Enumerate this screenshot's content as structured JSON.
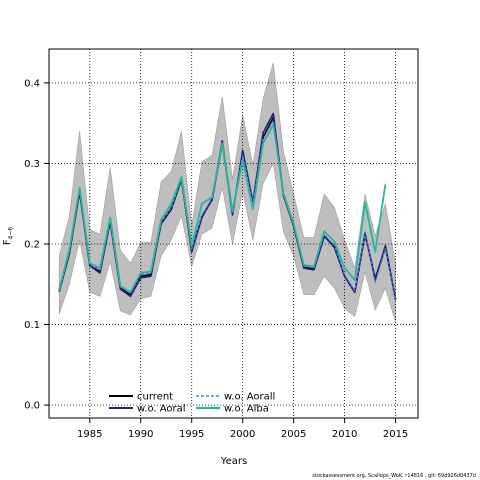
{
  "chart_data": {
    "type": "line",
    "xlabel": "Years",
    "ylabel_main": "F",
    "ylabel_sub": "4−6",
    "xlim": [
      1981,
      2017.2
    ],
    "ylim": [
      -0.016,
      0.442
    ],
    "xticks": [
      1985,
      1990,
      1995,
      2000,
      2005,
      2010,
      2015
    ],
    "yticks": [
      0.0,
      0.1,
      0.2,
      0.3,
      0.4
    ],
    "ytick_labels": [
      "0.0",
      "0.1",
      "0.2",
      "0.3",
      "0.4"
    ],
    "grid": true,
    "band": {
      "x": [
        1982,
        1983,
        1984,
        1985,
        1986,
        1987,
        1988,
        1989,
        1990,
        1991,
        1992,
        1993,
        1994,
        1995,
        1996,
        1997,
        1998,
        1999,
        2000,
        2001,
        2002,
        2003,
        2004,
        2005,
        2006,
        2007,
        2008,
        2009,
        2010,
        2011,
        2012,
        2013,
        2014,
        2015
      ],
      "lower": [
        0.113,
        0.15,
        0.205,
        0.14,
        0.135,
        0.178,
        0.117,
        0.112,
        0.132,
        0.135,
        0.185,
        0.205,
        0.235,
        0.172,
        0.212,
        0.22,
        0.27,
        0.2,
        0.265,
        0.205,
        0.275,
        0.3,
        0.215,
        0.185,
        0.137,
        0.137,
        0.16,
        0.145,
        0.12,
        0.11,
        0.165,
        0.118,
        0.145,
        0.103
      ],
      "upper": [
        0.185,
        0.235,
        0.34,
        0.218,
        0.212,
        0.295,
        0.192,
        0.176,
        0.202,
        0.202,
        0.277,
        0.29,
        0.34,
        0.222,
        0.302,
        0.31,
        0.383,
        0.28,
        0.36,
        0.298,
        0.38,
        0.425,
        0.315,
        0.262,
        0.208,
        0.208,
        0.262,
        0.245,
        0.205,
        0.17,
        0.262,
        0.21,
        0.25,
        0.175
      ]
    },
    "series": [
      {
        "name": "current",
        "color": "#000000",
        "dash": "",
        "width": 1.6,
        "x": [
          1982,
          1983,
          1984,
          1985,
          1986,
          1987,
          1988,
          1989,
          1990,
          1991,
          1992,
          1993,
          1994,
          1995,
          1996,
          1997,
          1998,
          1999,
          2000,
          2001,
          2002,
          2003,
          2004,
          2005,
          2006,
          2007,
          2008,
          2009,
          2010,
          2011,
          2012,
          2013,
          2014,
          2015
        ],
        "values": [
          0.141,
          0.188,
          0.265,
          0.173,
          0.166,
          0.228,
          0.145,
          0.137,
          0.16,
          0.162,
          0.225,
          0.243,
          0.28,
          0.192,
          0.234,
          0.255,
          0.325,
          0.238,
          0.312,
          0.25,
          0.332,
          0.357,
          0.262,
          0.222,
          0.171,
          0.169,
          0.21,
          0.196,
          0.16,
          0.14,
          0.212,
          0.157,
          0.196,
          0.131
        ]
      },
      {
        "name": "w.o. Aoral",
        "color": "#2a1a7a",
        "dash": "",
        "width": 1.6,
        "x": [
          1982,
          1983,
          1984,
          1985,
          1986,
          1987,
          1988,
          1989,
          1990,
          1991,
          1992,
          1993,
          1994,
          1995,
          1996,
          1997,
          1998,
          1999,
          2000,
          2001,
          2002,
          2003,
          2004,
          2005,
          2006,
          2007,
          2008,
          2009,
          2010,
          2011,
          2012,
          2013,
          2014,
          2015
        ],
        "values": [
          0.141,
          0.19,
          0.267,
          0.173,
          0.164,
          0.228,
          0.144,
          0.135,
          0.158,
          0.16,
          0.226,
          0.245,
          0.282,
          0.19,
          0.233,
          0.256,
          0.328,
          0.236,
          0.316,
          0.252,
          0.338,
          0.362,
          0.26,
          0.223,
          0.17,
          0.168,
          0.209,
          0.198,
          0.16,
          0.14,
          0.214,
          0.155,
          0.198,
          0.131
        ]
      },
      {
        "name": "w.o. Aorall",
        "color": "#3a8fd6",
        "dash": "3,2",
        "width": 1.2,
        "x": [
          1982,
          1983,
          1984,
          1985,
          1986,
          1987,
          1988,
          1989,
          1990,
          1991,
          1992,
          1993,
          1994,
          1995,
          1996,
          1997,
          1998,
          1999,
          2000,
          2001,
          2002,
          2003,
          2004,
          2005,
          2006,
          2007,
          2008,
          2009,
          2010,
          2011,
          2012,
          2013,
          2014,
          2015
        ],
        "values": [
          0.142,
          0.19,
          0.268,
          0.175,
          0.168,
          0.231,
          0.147,
          0.139,
          0.162,
          0.164,
          0.227,
          0.245,
          0.281,
          0.194,
          0.236,
          0.257,
          0.325,
          0.24,
          0.31,
          0.25,
          0.33,
          0.353,
          0.262,
          0.224,
          0.173,
          0.171,
          0.212,
          0.198,
          0.162,
          0.142,
          0.214,
          0.152,
          0.194,
          0.13
        ]
      },
      {
        "name": "w.o. Alba",
        "color": "#2bb3a0",
        "dash": "",
        "width": 1.8,
        "x": [
          1982,
          1983,
          1984,
          1985,
          1986,
          1987,
          1988,
          1989,
          1990,
          1991,
          1992,
          1993,
          1994,
          1995,
          1996,
          1997,
          1998,
          1999,
          2000,
          2001,
          2002,
          2003,
          2004,
          2005,
          2006,
          2007,
          2008,
          2009,
          2010,
          2011,
          2012,
          2013,
          2014
        ],
        "values": [
          0.143,
          0.193,
          0.27,
          0.176,
          0.17,
          0.233,
          0.148,
          0.14,
          0.164,
          0.166,
          0.23,
          0.25,
          0.283,
          0.197,
          0.25,
          0.258,
          0.325,
          0.24,
          0.305,
          0.243,
          0.325,
          0.348,
          0.263,
          0.225,
          0.174,
          0.172,
          0.216,
          0.203,
          0.17,
          0.155,
          0.252,
          0.19,
          0.274
        ]
      }
    ],
    "legend_position": "bottom-left",
    "credit": "stockassessment.org, Scallops_WoK, r14816 , git: 69d926d0437d"
  }
}
